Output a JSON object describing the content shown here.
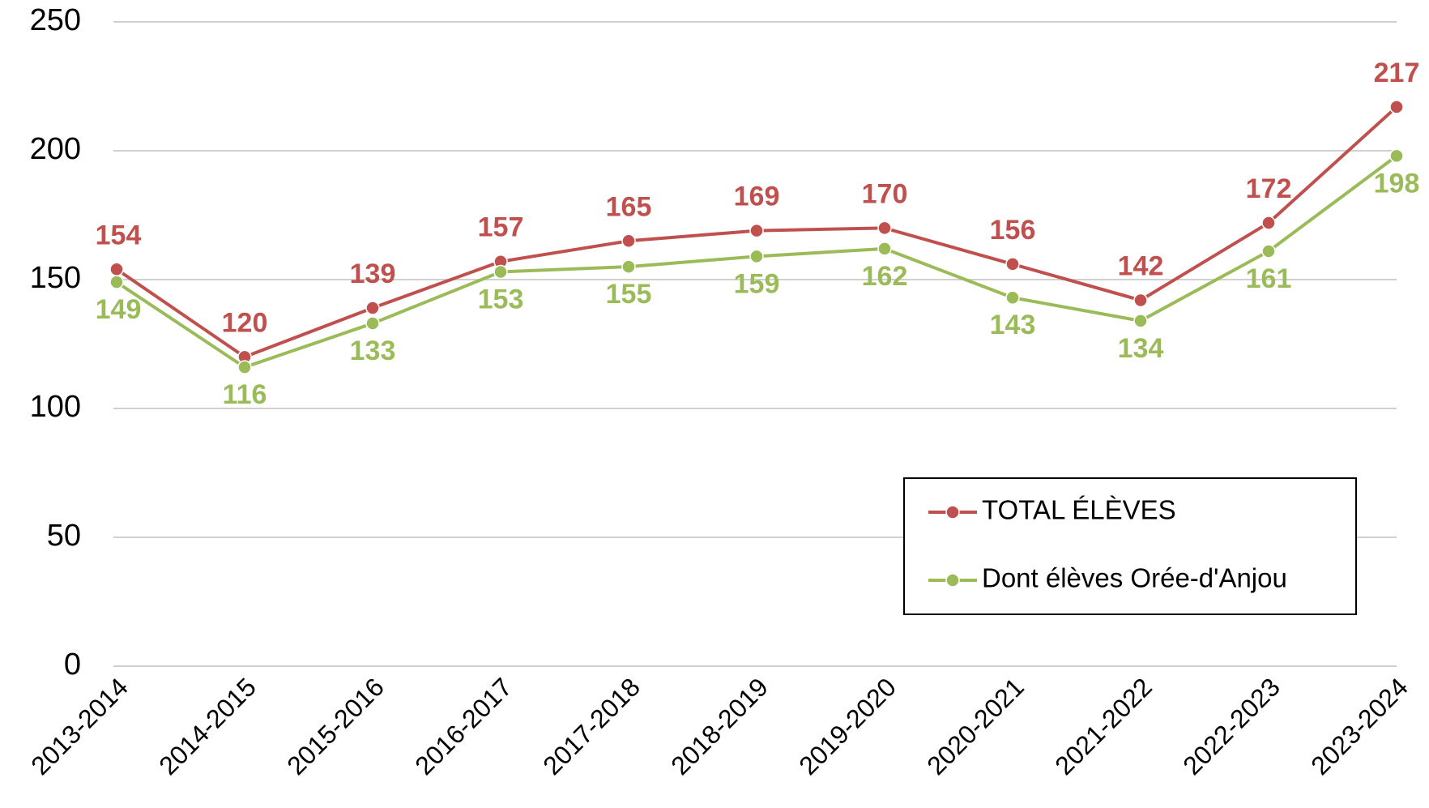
{
  "chart_data": {
    "type": "line",
    "categories": [
      "2013-2014",
      "2014-2015",
      "2015-2016",
      "2016-2017",
      "2017-2018",
      "2018-2019",
      "2019-2020",
      "2020-2021",
      "2021-2022",
      "2022-2023",
      "2023-2024"
    ],
    "series": [
      {
        "name": "TOTAL ÉLÈVES",
        "color": "#c0504d",
        "values": [
          154,
          120,
          139,
          157,
          165,
          169,
          170,
          156,
          142,
          172,
          217
        ]
      },
      {
        "name": "Dont élèves Orée-d'Anjou",
        "color": "#9bbb59",
        "values": [
          149,
          116,
          133,
          153,
          155,
          159,
          162,
          143,
          134,
          161,
          198
        ]
      }
    ],
    "ylim": [
      0,
      250
    ],
    "yticks": [
      0,
      50,
      100,
      150,
      200,
      250
    ],
    "grid": true,
    "legend": "lower right"
  }
}
